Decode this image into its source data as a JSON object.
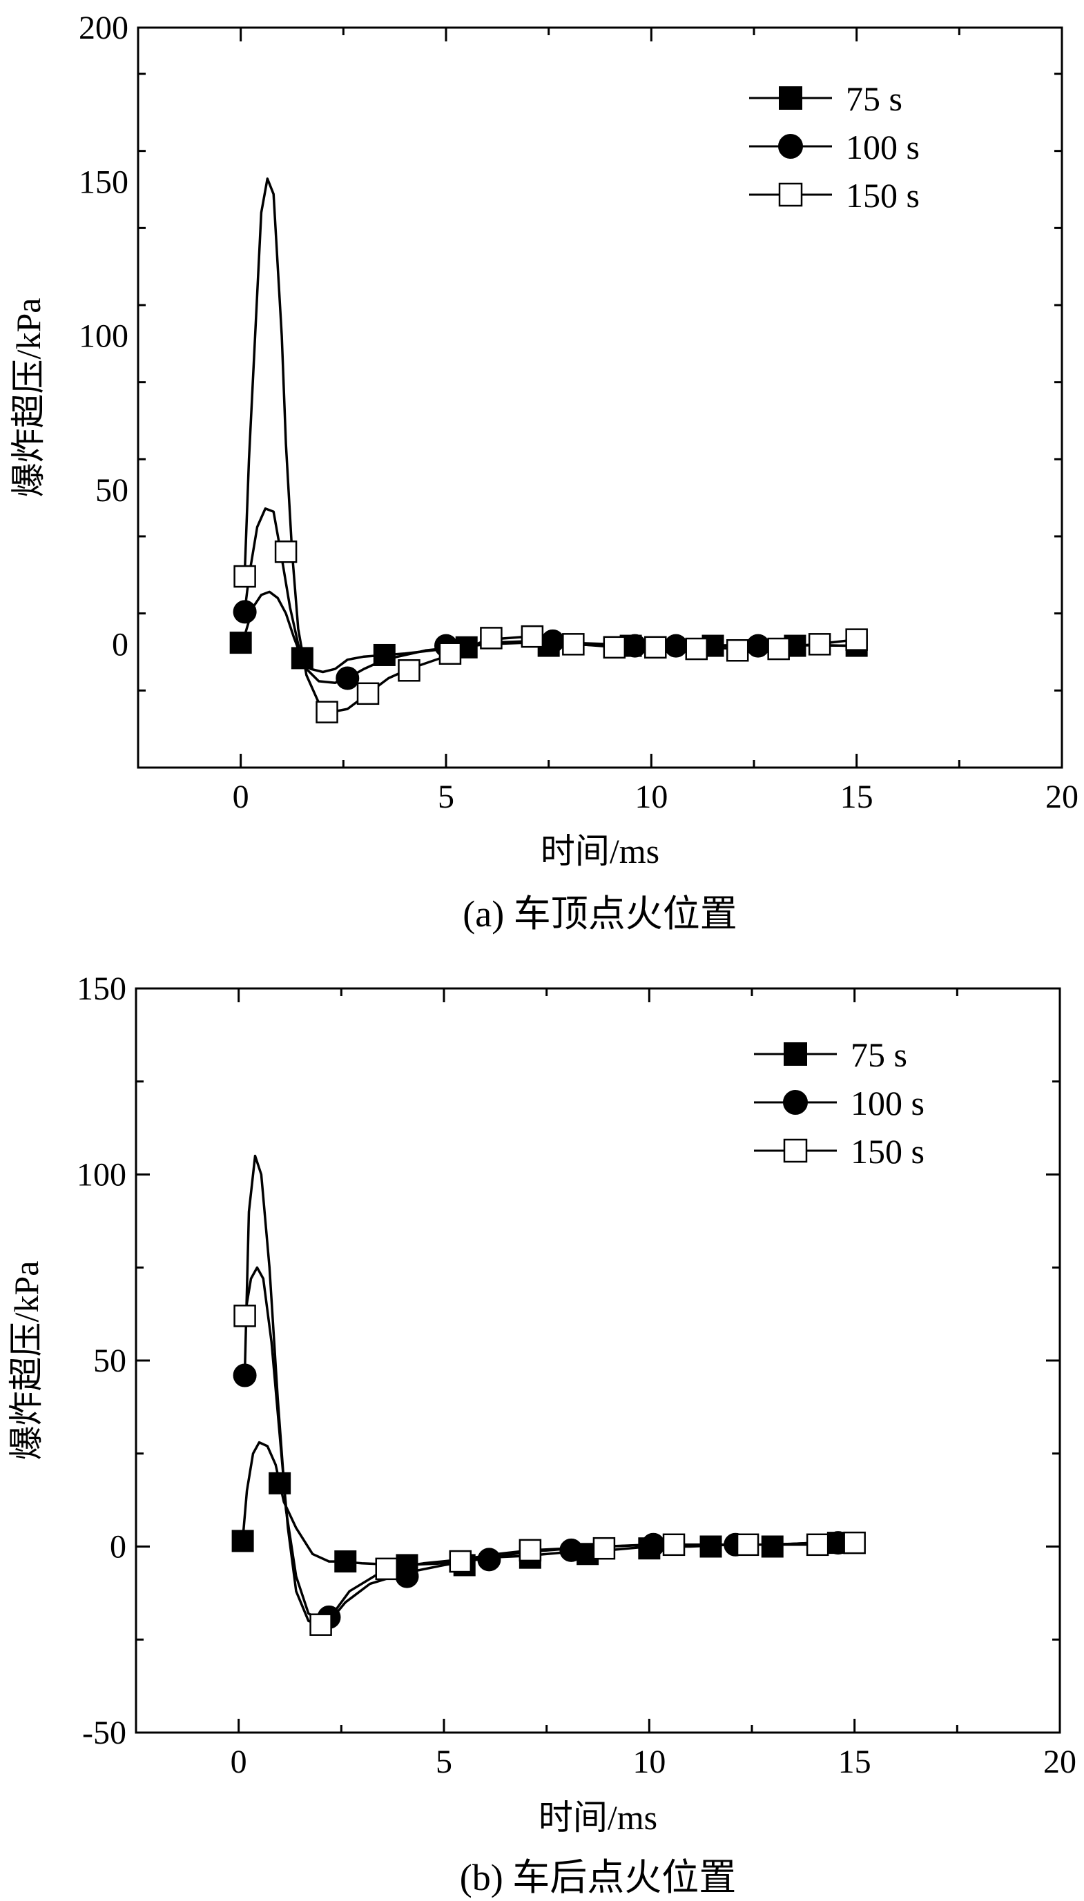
{
  "chart_data": [
    {
      "type": "line",
      "caption": "(a) 车顶点火位置",
      "xlabel": "时间/ms",
      "ylabel": "爆炸超压/kPa",
      "xlim": [
        -2.5,
        20
      ],
      "ylim": [
        -40,
        200
      ],
      "xticks": [
        0,
        5,
        10,
        15,
        20
      ],
      "yticks": [
        0,
        50,
        100,
        150,
        200
      ],
      "legend_position": "top-right",
      "series": [
        {
          "name": "75 s",
          "marker": "filled-square",
          "line": [
            [
              0.1,
              3
            ],
            [
              0.3,
              12
            ],
            [
              0.5,
              16
            ],
            [
              0.7,
              17
            ],
            [
              0.9,
              15
            ],
            [
              1.1,
              10
            ],
            [
              1.3,
              2
            ],
            [
              1.5,
              -5
            ],
            [
              1.7,
              -8
            ],
            [
              2,
              -9
            ],
            [
              2.3,
              -8
            ],
            [
              2.6,
              -5
            ],
            [
              3,
              -4
            ],
            [
              3.5,
              -3.5
            ],
            [
              4,
              -3
            ],
            [
              5,
              -1.5
            ],
            [
              6,
              0
            ],
            [
              7,
              0.5
            ],
            [
              8,
              0
            ],
            [
              9,
              -0.5
            ],
            [
              10,
              -0.5
            ],
            [
              11,
              -0.5
            ],
            [
              12,
              -0.3
            ],
            [
              13,
              -0.3
            ],
            [
              14,
              -0.3
            ],
            [
              15,
              -0.5
            ]
          ],
          "markers": [
            [
              0,
              0.5
            ],
            [
              1.5,
              -4.5
            ],
            [
              3.5,
              -3.5
            ],
            [
              5.5,
              -1
            ],
            [
              7.5,
              -0.5
            ],
            [
              9.5,
              -0.5
            ],
            [
              11.5,
              -0.5
            ],
            [
              13.5,
              -0.5
            ],
            [
              15,
              -0.5
            ]
          ]
        },
        {
          "name": "100 s",
          "marker": "filled-circle",
          "line": [
            [
              0.1,
              11
            ],
            [
              0.2,
              22
            ],
            [
              0.4,
              38
            ],
            [
              0.6,
              44
            ],
            [
              0.8,
              43
            ],
            [
              1,
              28
            ],
            [
              1.2,
              12
            ],
            [
              1.4,
              0
            ],
            [
              1.6,
              -8
            ],
            [
              1.9,
              -12
            ],
            [
              2.3,
              -12.5
            ],
            [
              2.6,
              -11
            ],
            [
              3,
              -8
            ],
            [
              3.5,
              -5
            ],
            [
              4.5,
              -2
            ],
            [
              5.2,
              -1
            ],
            [
              6,
              0.5
            ],
            [
              7,
              1
            ],
            [
              8,
              0.5
            ],
            [
              9,
              0
            ],
            [
              10,
              -0.3
            ],
            [
              11,
              -0.5
            ],
            [
              12,
              -0.5
            ],
            [
              13,
              -0.5
            ],
            [
              14,
              -0.3
            ],
            [
              15,
              -0.5
            ]
          ],
          "markers": [
            [
              0.1,
              10.5
            ],
            [
              2.6,
              -11
            ],
            [
              5,
              -0.5
            ],
            [
              7.6,
              1
            ],
            [
              9.6,
              -0.5
            ],
            [
              10.6,
              -0.5
            ],
            [
              12.6,
              -0.5
            ]
          ]
        },
        {
          "name": "150 s",
          "marker": "open-square",
          "line": [
            [
              0.1,
              24
            ],
            [
              0.2,
              60
            ],
            [
              0.35,
              100
            ],
            [
              0.5,
              140
            ],
            [
              0.65,
              151
            ],
            [
              0.8,
              146
            ],
            [
              1,
              100
            ],
            [
              1.1,
              65
            ],
            [
              1.25,
              30
            ],
            [
              1.4,
              5
            ],
            [
              1.6,
              -10
            ],
            [
              1.9,
              -19
            ],
            [
              2.2,
              -22
            ],
            [
              2.6,
              -21
            ],
            [
              3.1,
              -16
            ],
            [
              3.6,
              -11
            ],
            [
              4.1,
              -8
            ],
            [
              5.2,
              -3
            ],
            [
              6,
              1.5
            ],
            [
              7,
              2.5
            ],
            [
              7.5,
              1.5
            ],
            [
              8.2,
              0
            ],
            [
              9.2,
              -1
            ],
            [
              10.2,
              -1
            ],
            [
              11.2,
              -1
            ],
            [
              12.2,
              -1.5
            ],
            [
              13.2,
              -1
            ],
            [
              14,
              0
            ],
            [
              15,
              1.5
            ]
          ],
          "markers": [
            [
              0.1,
              22
            ],
            [
              1.1,
              30
            ],
            [
              2.1,
              -22
            ],
            [
              3.1,
              -16
            ],
            [
              4.1,
              -8.5
            ],
            [
              5.1,
              -3
            ],
            [
              6.1,
              2
            ],
            [
              7.1,
              2.5
            ],
            [
              8.1,
              0
            ],
            [
              9.1,
              -1
            ],
            [
              10.1,
              -1
            ],
            [
              11.1,
              -1.5
            ],
            [
              12.1,
              -2
            ],
            [
              13.1,
              -1.5
            ],
            [
              14.1,
              0
            ],
            [
              15,
              1.5
            ]
          ]
        }
      ]
    },
    {
      "type": "line",
      "caption": "(b) 车后点火位置",
      "xlabel": "时间/ms",
      "ylabel": "爆炸超压/kPa",
      "xlim": [
        -2.5,
        20
      ],
      "ylim": [
        -50,
        150
      ],
      "xticks": [
        0,
        5,
        10,
        15,
        20
      ],
      "yticks": [
        -50,
        0,
        50,
        100,
        150
      ],
      "legend_position": "top-right",
      "series": [
        {
          "name": "75 s",
          "marker": "filled-square",
          "line": [
            [
              0.1,
              2
            ],
            [
              0.2,
              15
            ],
            [
              0.35,
              25
            ],
            [
              0.5,
              28
            ],
            [
              0.7,
              27
            ],
            [
              0.9,
              22
            ],
            [
              1.1,
              12
            ],
            [
              1.4,
              5
            ],
            [
              1.8,
              -2
            ],
            [
              2.2,
              -4
            ],
            [
              2.5,
              -4
            ],
            [
              3,
              -4.5
            ],
            [
              4,
              -5
            ],
            [
              5,
              -4.5
            ],
            [
              6,
              -3
            ],
            [
              7,
              -2.5
            ],
            [
              8,
              -1.5
            ],
            [
              9,
              -1
            ],
            [
              10,
              0
            ],
            [
              11,
              0
            ],
            [
              12,
              0.5
            ],
            [
              13,
              0.5
            ],
            [
              14,
              1
            ],
            [
              15,
              1.5
            ]
          ],
          "markers": [
            [
              0.1,
              1.5
            ],
            [
              1,
              17
            ],
            [
              2.6,
              -4
            ],
            [
              4.1,
              -5
            ],
            [
              5.5,
              -5
            ],
            [
              7.1,
              -3
            ],
            [
              8.5,
              -2
            ],
            [
              10,
              -0.5
            ],
            [
              11.5,
              0
            ],
            [
              13,
              0
            ],
            [
              14.6,
              1
            ]
          ]
        },
        {
          "name": "100 s",
          "marker": "filled-circle",
          "line": [
            [
              0.15,
              47
            ],
            [
              0.25,
              90
            ],
            [
              0.4,
              105
            ],
            [
              0.55,
              100
            ],
            [
              0.75,
              75
            ],
            [
              0.95,
              40
            ],
            [
              1.15,
              10
            ],
            [
              1.4,
              -8
            ],
            [
              1.7,
              -18
            ],
            [
              2,
              -20
            ],
            [
              2.3,
              -19
            ],
            [
              2.6,
              -15
            ],
            [
              3.2,
              -10
            ],
            [
              4.1,
              -7
            ],
            [
              5,
              -5
            ],
            [
              6.1,
              -3
            ],
            [
              7,
              -1.5
            ],
            [
              8.1,
              -0.5
            ],
            [
              9,
              0
            ],
            [
              10.1,
              0.5
            ],
            [
              11,
              0.5
            ],
            [
              12.1,
              0.5
            ],
            [
              13,
              0.5
            ],
            [
              14,
              1
            ],
            [
              14.6,
              2
            ],
            [
              15,
              2
            ]
          ],
          "markers": [
            [
              0.15,
              46
            ],
            [
              2.2,
              -19
            ],
            [
              4.1,
              -8
            ],
            [
              6.1,
              -3.5
            ],
            [
              8.1,
              -1
            ],
            [
              10.1,
              0.5
            ],
            [
              12.1,
              0.5
            ],
            [
              14.6,
              1
            ]
          ]
        },
        {
          "name": "150 s",
          "marker": "open-square",
          "line": [
            [
              0.15,
              62
            ],
            [
              0.3,
              72
            ],
            [
              0.45,
              75
            ],
            [
              0.6,
              72
            ],
            [
              0.8,
              55
            ],
            [
              1,
              30
            ],
            [
              1.2,
              5
            ],
            [
              1.4,
              -12
            ],
            [
              1.7,
              -20
            ],
            [
              2,
              -21
            ],
            [
              2.3,
              -18
            ],
            [
              2.7,
              -12
            ],
            [
              3.6,
              -6
            ],
            [
              4.5,
              -4.5
            ],
            [
              5.4,
              -3.5
            ],
            [
              6.3,
              -2
            ],
            [
              7.1,
              -1
            ],
            [
              8,
              -0.5
            ],
            [
              8.9,
              0
            ],
            [
              10,
              0.5
            ],
            [
              10.7,
              0.5
            ],
            [
              12,
              0.5
            ],
            [
              12.4,
              0.5
            ],
            [
              13.5,
              0.5
            ],
            [
              14.1,
              0.5
            ],
            [
              15,
              1
            ]
          ],
          "markers": [
            [
              0.15,
              62
            ],
            [
              2,
              -21
            ],
            [
              3.6,
              -6
            ],
            [
              5.4,
              -4
            ],
            [
              7.1,
              -1
            ],
            [
              8.9,
              -0.5
            ],
            [
              10.6,
              0.5
            ],
            [
              12.4,
              0.5
            ],
            [
              14.1,
              0.5
            ],
            [
              15,
              1
            ]
          ]
        }
      ]
    }
  ]
}
